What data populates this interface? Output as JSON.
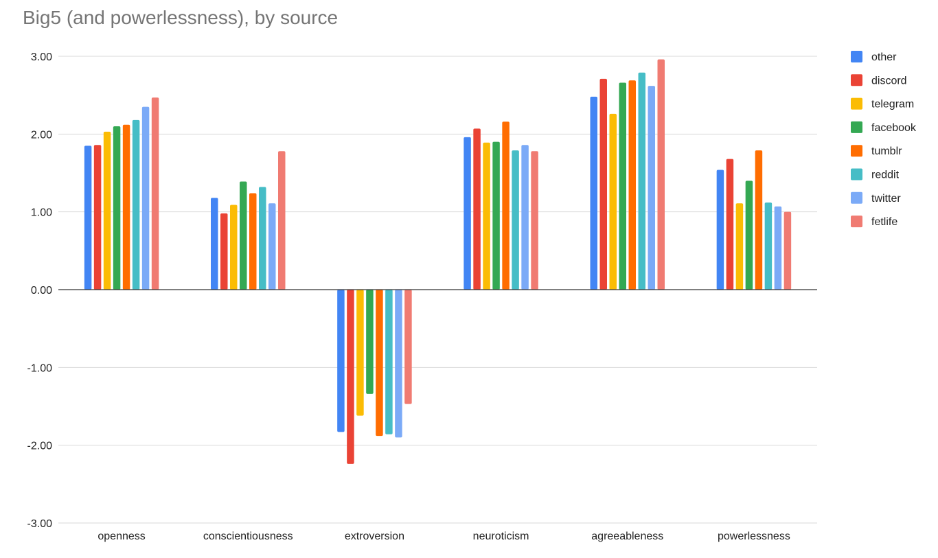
{
  "chart_data": {
    "type": "bar",
    "title": "Big5 (and powerlessness), by source",
    "xlabel": "",
    "ylabel": "",
    "ylim": [
      -3,
      3
    ],
    "yticks": [
      "3.00",
      "2.00",
      "1.00",
      "0.00",
      "-1.00",
      "-2.00",
      "-3.00"
    ],
    "grid": true,
    "legend_position": "right",
    "categories": [
      "openness",
      "conscientiousness",
      "extroversion",
      "neuroticism",
      "agreeableness",
      "powerlessness"
    ],
    "series": [
      {
        "name": "other",
        "color": "#4285F4",
        "values": [
          1.85,
          1.18,
          -1.83,
          1.96,
          2.48,
          1.54
        ]
      },
      {
        "name": "discord",
        "color": "#EA4335",
        "values": [
          1.86,
          0.98,
          -2.24,
          2.07,
          2.71,
          1.68
        ]
      },
      {
        "name": "telegram",
        "color": "#FBBC04",
        "values": [
          2.03,
          1.09,
          -1.62,
          1.89,
          2.26,
          1.11
        ]
      },
      {
        "name": "facebook",
        "color": "#34A853",
        "values": [
          2.1,
          1.39,
          -1.34,
          1.9,
          2.66,
          1.4
        ]
      },
      {
        "name": "tumblr",
        "color": "#FF6D01",
        "values": [
          2.12,
          1.24,
          -1.88,
          2.16,
          2.69,
          1.79
        ]
      },
      {
        "name": "reddit",
        "color": "#46BDC6",
        "values": [
          2.18,
          1.32,
          -1.86,
          1.79,
          2.79,
          1.12
        ]
      },
      {
        "name": "twitter",
        "color": "#7BAAF7",
        "values": [
          2.35,
          1.11,
          -1.9,
          1.86,
          2.62,
          1.07
        ]
      },
      {
        "name": "fetlife",
        "color": "#F07B72",
        "values": [
          2.47,
          1.78,
          -1.47,
          1.78,
          2.96,
          1.0
        ]
      }
    ]
  }
}
